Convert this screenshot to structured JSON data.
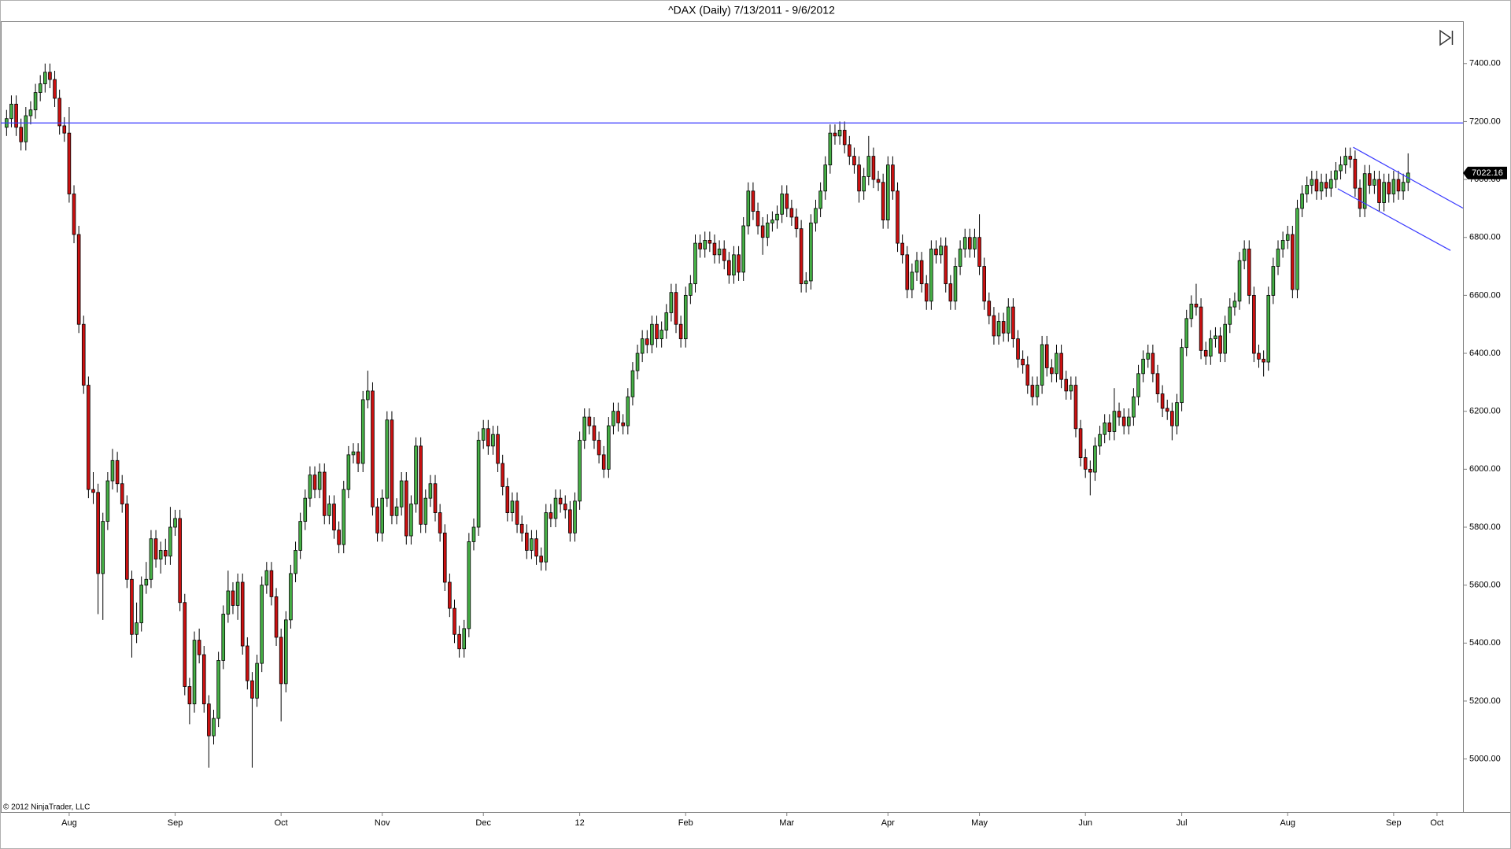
{
  "chart_data": {
    "type": "candlestick",
    "title": "^DAX (Daily)  7/13/2011 - 9/6/2012",
    "copyright": "© 2012 NinjaTrader, LLC",
    "up_color": "#46b046",
    "down_color": "#cc1111",
    "wick_color": "#000000",
    "line_color": "#3a3aff",
    "xlim": [
      -1.2,
      302.4
    ],
    "xticks": [
      {
        "value": 13,
        "label": "Aug"
      },
      {
        "value": 35,
        "label": "Sep"
      },
      {
        "value": 57,
        "label": "Oct"
      },
      {
        "value": 78,
        "label": "Nov"
      },
      {
        "value": 99,
        "label": "Dec"
      },
      {
        "value": 119,
        "label": "12"
      },
      {
        "value": 141,
        "label": "Feb"
      },
      {
        "value": 162,
        "label": "Mar"
      },
      {
        "value": 183,
        "label": "Apr"
      },
      {
        "value": 202,
        "label": "May"
      },
      {
        "value": 224,
        "label": "Jun"
      },
      {
        "value": 244,
        "label": "Jul"
      },
      {
        "value": 266,
        "label": "Aug"
      },
      {
        "value": 288,
        "label": "Sep"
      },
      {
        "value": 297,
        "label": "Oct"
      }
    ],
    "ylim": [
      4817,
      7546
    ],
    "yticks": [
      {
        "value": 5000,
        "label": "5000.00"
      },
      {
        "value": 5200,
        "label": "5200.00"
      },
      {
        "value": 5400,
        "label": "5400.00"
      },
      {
        "value": 5600,
        "label": "5600.00"
      },
      {
        "value": 5800,
        "label": "5800.00"
      },
      {
        "value": 6000,
        "label": "6000.00"
      },
      {
        "value": 6200,
        "label": "6200.00"
      },
      {
        "value": 6400,
        "label": "6400.00"
      },
      {
        "value": 6600,
        "label": "6600.00"
      },
      {
        "value": 6800,
        "label": "6800.00"
      },
      {
        "value": 7000,
        "label": "7000.00"
      },
      {
        "value": 7200,
        "label": "7200.00"
      },
      {
        "value": 7400,
        "label": "7400.00"
      }
    ],
    "hlines": [
      7195
    ],
    "trendlines": [
      {
        "x": [
          279.6,
          302.4
        ],
        "y": [
          7111,
          6901
        ]
      },
      {
        "x": [
          276.4,
          299.8
        ],
        "y": [
          6968,
          6755
        ]
      }
    ],
    "open": [
      7180,
      7210,
      7260,
      7180,
      7130,
      7220,
      7240,
      7300,
      7330,
      7370,
      7345,
      7280,
      7185,
      7160,
      6950,
      6810,
      6500,
      6290,
      5930,
      5920,
      5640,
      5820,
      5960,
      6030,
      5950,
      5880,
      5620,
      5430,
      5470,
      5600,
      5620,
      5760,
      5690,
      5720,
      5700,
      5800,
      5830,
      5540,
      5250,
      5190,
      5410,
      5360,
      5190,
      5080,
      5140,
      5340,
      5500,
      5580,
      5530,
      5610,
      5390,
      5270,
      5210,
      5330,
      5600,
      5650,
      5560,
      5420,
      5260,
      5480,
      5640,
      5720,
      5820,
      5900,
      5980,
      5930,
      5990,
      5840,
      5880,
      5790,
      5740,
      5930,
      6050,
      6060,
      6020,
      6240,
      6270,
      5870,
      5780,
      5900,
      6170,
      5840,
      5870,
      5960,
      5770,
      5880,
      6080,
      5810,
      5900,
      5950,
      5850,
      5780,
      5610,
      5520,
      5430,
      5380,
      5450,
      5750,
      5800,
      6100,
      6140,
      6080,
      6120,
      6020,
      5940,
      5850,
      5890,
      5810,
      5780,
      5720,
      5760,
      5700,
      5680,
      5850,
      5830,
      5900,
      5880,
      5860,
      5780,
      5890,
      6100,
      6180,
      6150,
      6100,
      6050,
      6000,
      6150,
      6200,
      6160,
      6150,
      6250,
      6340,
      6400,
      6450,
      6430,
      6500,
      6450,
      6480,
      6540,
      6610,
      6500,
      6450,
      6600,
      6640,
      6780,
      6760,
      6790,
      6780,
      6740,
      6760,
      6720,
      6670,
      6740,
      6680,
      6840,
      6960,
      6890,
      6840,
      6800,
      6850,
      6860,
      6880,
      6950,
      6900,
      6870,
      6830,
      6640,
      6650,
      6850,
      6900,
      6960,
      7050,
      7160,
      7150,
      7170,
      7120,
      7080,
      7050,
      6960,
      7010,
      7080,
      7000,
      6990,
      6860,
      7050,
      6960,
      6780,
      6740,
      6620,
      6680,
      6720,
      6640,
      6580,
      6760,
      6740,
      6770,
      6640,
      6580,
      6700,
      6760,
      6800,
      6760,
      6800,
      6700,
      6580,
      6530,
      6460,
      6510,
      6470,
      6560,
      6450,
      6380,
      6360,
      6290,
      6250,
      6290,
      6430,
      6350,
      6330,
      6400,
      6310,
      6270,
      6290,
      6140,
      6040,
      6000,
      5990,
      6080,
      6120,
      6160,
      6130,
      6200,
      6180,
      6150,
      6180,
      6250,
      6330,
      6380,
      6400,
      6330,
      6260,
      6210,
      6200,
      6150,
      6230,
      6420,
      6520,
      6570,
      6560,
      6410,
      6390,
      6450,
      6460,
      6400,
      6500,
      6560,
      6580,
      6720,
      6760,
      6600,
      6400,
      6380,
      6370,
      6600,
      6700,
      6760,
      6790,
      6810,
      6620,
      6900,
      6950,
      6980,
      7000,
      6960,
      6990,
      6970,
      7000,
      7030,
      7050,
      7080,
      7070,
      6970,
      6900,
      7020,
      6980,
      7000,
      6920,
      6990,
      6950,
      7000,
      6960,
      6990
    ],
    "high": [
      7240,
      7290,
      7290,
      7210,
      7250,
      7270,
      7330,
      7360,
      7400,
      7400,
      7375,
      7310,
      7215,
      7250,
      6980,
      6840,
      6530,
      6320,
      5990,
      5950,
      5850,
      5990,
      6070,
      6060,
      5980,
      5910,
      5650,
      5540,
      5630,
      5680,
      5790,
      5790,
      5750,
      5760,
      5870,
      5860,
      5860,
      5570,
      5280,
      5440,
      5450,
      5390,
      5220,
      5170,
      5370,
      5530,
      5650,
      5610,
      5640,
      5640,
      5420,
      5300,
      5360,
      5630,
      5680,
      5680,
      5590,
      5450,
      5510,
      5670,
      5750,
      5850,
      5930,
      6010,
      6010,
      6020,
      6020,
      5910,
      5910,
      5820,
      5960,
      6080,
      6090,
      6090,
      6270,
      6340,
      6300,
      5900,
      5930,
      6200,
      6200,
      5900,
      5990,
      5990,
      5910,
      6110,
      6110,
      5930,
      5980,
      5980,
      5880,
      5810,
      5640,
      5550,
      5460,
      5480,
      5780,
      5830,
      6130,
      6170,
      6170,
      6150,
      6150,
      6050,
      5970,
      5920,
      5920,
      5840,
      5810,
      5790,
      5790,
      5730,
      5880,
      5880,
      5930,
      5930,
      5910,
      5890,
      5920,
      6130,
      6210,
      6210,
      6180,
      6130,
      6080,
      6180,
      6230,
      6230,
      6190,
      6280,
      6370,
      6430,
      6480,
      6480,
      6530,
      6530,
      6510,
      6570,
      6640,
      6640,
      6530,
      6630,
      6670,
      6810,
      6810,
      6820,
      6820,
      6810,
      6790,
      6790,
      6750,
      6770,
      6770,
      6870,
      6990,
      6990,
      6920,
      6870,
      6880,
      6890,
      6910,
      6980,
      6980,
      6930,
      6900,
      6860,
      6680,
      6880,
      6930,
      6990,
      7080,
      7190,
      7190,
      7200,
      7200,
      7150,
      7110,
      7080,
      7040,
      7150,
      7110,
      7030,
      7020,
      7080,
      7080,
      6990,
      6810,
      6770,
      6710,
      6750,
      6750,
      6670,
      6790,
      6790,
      6800,
      6800,
      6670,
      6730,
      6790,
      6830,
      6830,
      6830,
      6880,
      6730,
      6610,
      6560,
      6540,
      6540,
      6590,
      6590,
      6480,
      6410,
      6390,
      6320,
      6320,
      6460,
      6460,
      6380,
      6430,
      6430,
      6340,
      6320,
      6320,
      6170,
      6070,
      6030,
      6110,
      6150,
      6190,
      6190,
      6280,
      6230,
      6210,
      6210,
      6280,
      6360,
      6410,
      6430,
      6430,
      6360,
      6290,
      6240,
      6230,
      6260,
      6450,
      6550,
      6600,
      6640,
      6590,
      6440,
      6480,
      6490,
      6490,
      6530,
      6590,
      6610,
      6750,
      6790,
      6790,
      6630,
      6430,
      6410,
      6630,
      6730,
      6790,
      6820,
      6840,
      6840,
      6930,
      6980,
      7010,
      7030,
      7030,
      7020,
      7020,
      7030,
      7060,
      7080,
      7110,
      7110,
      7100,
      7000,
      7050,
      7050,
      7030,
      7030,
      7020,
      7020,
      7030,
      7030,
      7020,
      7090
    ],
    "low": [
      7150,
      7180,
      7150,
      7100,
      7100,
      7190,
      7210,
      7270,
      7300,
      7315,
      7250,
      7155,
      7130,
      6920,
      6780,
      6470,
      6260,
      5900,
      5880,
      5500,
      5480,
      5790,
      5930,
      5920,
      5850,
      5590,
      5350,
      5400,
      5440,
      5570,
      5590,
      5660,
      5640,
      5670,
      5670,
      5770,
      5510,
      5220,
      5120,
      5160,
      5330,
      5160,
      4970,
      5050,
      5110,
      5310,
      5470,
      5500,
      5480,
      5360,
      5240,
      4970,
      5180,
      5300,
      5570,
      5530,
      5390,
      5130,
      5230,
      5450,
      5610,
      5690,
      5790,
      5870,
      5900,
      5900,
      5810,
      5810,
      5760,
      5710,
      5710,
      5900,
      6020,
      5990,
      5990,
      6210,
      5840,
      5750,
      5750,
      5870,
      5810,
      5810,
      5840,
      5740,
      5740,
      5850,
      5780,
      5780,
      5870,
      5820,
      5750,
      5580,
      5490,
      5400,
      5350,
      5350,
      5420,
      5720,
      5770,
      6070,
      6050,
      6050,
      5990,
      5910,
      5820,
      5820,
      5780,
      5750,
      5690,
      5690,
      5670,
      5650,
      5650,
      5800,
      5800,
      5850,
      5830,
      5750,
      5750,
      5860,
      6070,
      6120,
      6070,
      6020,
      5970,
      5970,
      6120,
      6130,
      6120,
      6120,
      6220,
      6310,
      6370,
      6400,
      6400,
      6420,
      6420,
      6450,
      6510,
      6470,
      6420,
      6420,
      6570,
      6610,
      6730,
      6730,
      6750,
      6710,
      6710,
      6690,
      6640,
      6640,
      6650,
      6650,
      6810,
      6860,
      6810,
      6740,
      6770,
      6820,
      6830,
      6850,
      6870,
      6840,
      6800,
      6610,
      6610,
      6620,
      6820,
      6870,
      6930,
      7020,
      7120,
      7120,
      7090,
      7050,
      7020,
      6920,
      6930,
      6980,
      6970,
      6960,
      6830,
      6830,
      6930,
      6750,
      6710,
      6590,
      6590,
      6650,
      6610,
      6550,
      6550,
      6710,
      6710,
      6610,
      6550,
      6550,
      6670,
      6730,
      6730,
      6730,
      6670,
      6550,
      6500,
      6430,
      6430,
      6440,
      6440,
      6420,
      6350,
      6330,
      6260,
      6220,
      6220,
      6260,
      6320,
      6300,
      6300,
      6280,
      6240,
      6240,
      6110,
      6010,
      5970,
      5910,
      5960,
      6050,
      6090,
      6100,
      6100,
      6150,
      6120,
      6120,
      6150,
      6220,
      6300,
      6350,
      6300,
      6230,
      6180,
      6170,
      6100,
      6120,
      6200,
      6390,
      6490,
      6530,
      6380,
      6360,
      6360,
      6420,
      6370,
      6370,
      6470,
      6530,
      6550,
      6690,
      6570,
      6370,
      6350,
      6320,
      6340,
      6570,
      6670,
      6730,
      6760,
      6590,
      6590,
      6870,
      6920,
      6950,
      6930,
      6930,
      6940,
      6940,
      6970,
      7000,
      7020,
      7040,
      6940,
      6870,
      6870,
      6950,
      6950,
      6890,
      6890,
      6920,
      6920,
      6930,
      6930,
      6960
    ],
    "close": [
      7210,
      7260,
      7180,
      7130,
      7220,
      7240,
      7300,
      7330,
      7370,
      7345,
      7280,
      7185,
      7160,
      6950,
      6810,
      6500,
      6290,
      5930,
      5920,
      5640,
      5820,
      5960,
      6030,
      5950,
      5880,
      5620,
      5430,
      5470,
      5600,
      5620,
      5760,
      5690,
      5720,
      5700,
      5800,
      5830,
      5540,
      5250,
      5190,
      5410,
      5360,
      5190,
      5080,
      5140,
      5340,
      5500,
      5580,
      5530,
      5610,
      5390,
      5270,
      5210,
      5330,
      5600,
      5650,
      5560,
      5420,
      5260,
      5480,
      5640,
      5720,
      5820,
      5900,
      5980,
      5930,
      5990,
      5840,
      5880,
      5790,
      5740,
      5930,
      6050,
      6060,
      6020,
      6240,
      6270,
      5870,
      5780,
      5900,
      6170,
      5840,
      5870,
      5960,
      5770,
      5880,
      6080,
      5810,
      5900,
      5950,
      5850,
      5780,
      5610,
      5520,
      5430,
      5380,
      5450,
      5750,
      5800,
      6100,
      6140,
      6080,
      6120,
      6020,
      5940,
      5850,
      5890,
      5810,
      5780,
      5720,
      5760,
      5700,
      5680,
      5850,
      5830,
      5900,
      5880,
      5860,
      5780,
      5890,
      6100,
      6180,
      6150,
      6100,
      6050,
      6000,
      6150,
      6200,
      6160,
      6150,
      6250,
      6340,
      6400,
      6450,
      6430,
      6500,
      6450,
      6480,
      6540,
      6610,
      6500,
      6450,
      6600,
      6640,
      6780,
      6760,
      6790,
      6780,
      6740,
      6760,
      6720,
      6670,
      6740,
      6680,
      6840,
      6960,
      6890,
      6840,
      6800,
      6850,
      6860,
      6880,
      6950,
      6900,
      6870,
      6830,
      6640,
      6650,
      6850,
      6900,
      6960,
      7050,
      7160,
      7150,
      7170,
      7120,
      7080,
      7050,
      6960,
      7010,
      7080,
      7000,
      6990,
      6860,
      7050,
      6960,
      6780,
      6740,
      6620,
      6680,
      6720,
      6640,
      6580,
      6760,
      6740,
      6770,
      6640,
      6580,
      6700,
      6760,
      6800,
      6760,
      6800,
      6700,
      6580,
      6530,
      6460,
      6510,
      6470,
      6560,
      6450,
      6380,
      6360,
      6290,
      6250,
      6290,
      6430,
      6350,
      6330,
      6400,
      6310,
      6270,
      6290,
      6140,
      6040,
      6000,
      5990,
      6080,
      6120,
      6160,
      6130,
      6200,
      6180,
      6150,
      6180,
      6250,
      6330,
      6380,
      6400,
      6330,
      6260,
      6210,
      6200,
      6150,
      6230,
      6420,
      6520,
      6570,
      6560,
      6410,
      6390,
      6450,
      6460,
      6400,
      6500,
      6560,
      6580,
      6720,
      6760,
      6600,
      6400,
      6380,
      6370,
      6600,
      6700,
      6760,
      6790,
      6810,
      6620,
      6900,
      6950,
      6980,
      7000,
      6960,
      6990,
      6970,
      7000,
      7030,
      7050,
      7080,
      7070,
      6970,
      6900,
      7020,
      6980,
      7000,
      6920,
      6990,
      6950,
      7000,
      6960,
      6990,
      7022.16
    ]
  }
}
